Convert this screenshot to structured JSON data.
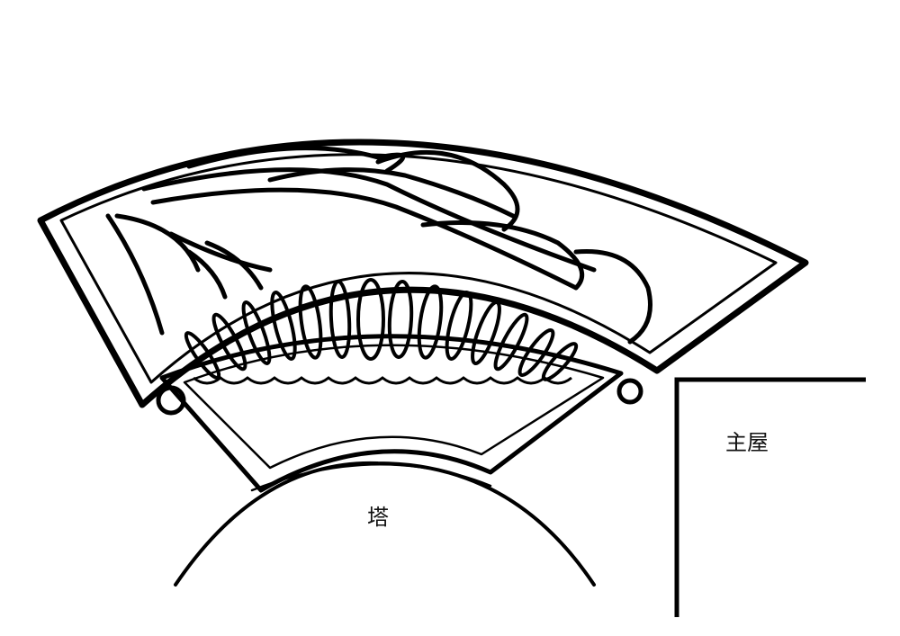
{
  "labels": {
    "tower": "塔",
    "main_house": "主屋"
  },
  "colors": {
    "stroke": "#000000",
    "background": "#ffffff"
  }
}
